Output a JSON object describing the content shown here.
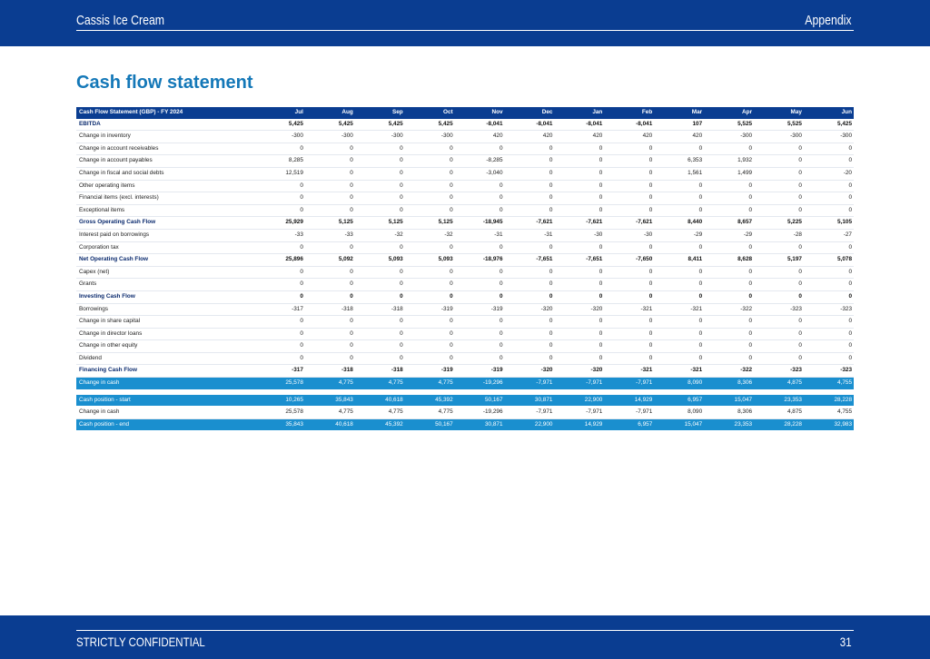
{
  "header": {
    "left": "Cassis Ice Cream",
    "right": "Appendix"
  },
  "footer": {
    "left": "STRICTLY CONFIDENTIAL",
    "page": "31"
  },
  "page_title": "Cash flow statement",
  "table": {
    "corner": "Cash Flow Statement (GBP) - FY 2024",
    "months": [
      "Jul",
      "Aug",
      "Sep",
      "Oct",
      "Nov",
      "Dec",
      "Jan",
      "Feb",
      "Mar",
      "Apr",
      "May",
      "Jun"
    ],
    "rows": [
      {
        "label": "EBITDA",
        "style": "bold",
        "values": [
          "5,425",
          "5,425",
          "5,425",
          "5,425",
          "-8,041",
          "-8,041",
          "-8,041",
          "-8,041",
          "107",
          "5,525",
          "5,525",
          "5,425"
        ]
      },
      {
        "label": "Change in inventory",
        "style": "normal",
        "values": [
          "-300",
          "-300",
          "-300",
          "-300",
          "420",
          "420",
          "420",
          "420",
          "420",
          "-300",
          "-300",
          "-300"
        ]
      },
      {
        "label": "Change in account receivables",
        "style": "normal",
        "values": [
          "0",
          "0",
          "0",
          "0",
          "0",
          "0",
          "0",
          "0",
          "0",
          "0",
          "0",
          "0"
        ]
      },
      {
        "label": "Change in account payables",
        "style": "normal",
        "values": [
          "8,285",
          "0",
          "0",
          "0",
          "-8,285",
          "0",
          "0",
          "0",
          "6,353",
          "1,932",
          "0",
          "0"
        ]
      },
      {
        "label": "Change in fiscal and social debts",
        "style": "normal",
        "values": [
          "12,519",
          "0",
          "0",
          "0",
          "-3,040",
          "0",
          "0",
          "0",
          "1,561",
          "1,499",
          "0",
          "-20"
        ]
      },
      {
        "label": "Other operating items",
        "style": "normal",
        "values": [
          "0",
          "0",
          "0",
          "0",
          "0",
          "0",
          "0",
          "0",
          "0",
          "0",
          "0",
          "0"
        ]
      },
      {
        "label": "Financial items (excl. interests)",
        "style": "normal",
        "values": [
          "0",
          "0",
          "0",
          "0",
          "0",
          "0",
          "0",
          "0",
          "0",
          "0",
          "0",
          "0"
        ]
      },
      {
        "label": "Exceptional items",
        "style": "normal",
        "values": [
          "0",
          "0",
          "0",
          "0",
          "0",
          "0",
          "0",
          "0",
          "0",
          "0",
          "0",
          "0"
        ]
      },
      {
        "label": "Gross Operating Cash Flow",
        "style": "bold",
        "values": [
          "25,929",
          "5,125",
          "5,125",
          "5,125",
          "-18,945",
          "-7,621",
          "-7,621",
          "-7,621",
          "8,440",
          "8,657",
          "5,225",
          "5,105"
        ]
      },
      {
        "label": "Interest paid on borrowings",
        "style": "normal",
        "values": [
          "-33",
          "-33",
          "-32",
          "-32",
          "-31",
          "-31",
          "-30",
          "-30",
          "-29",
          "-29",
          "-28",
          "-27"
        ]
      },
      {
        "label": "Corporation tax",
        "style": "normal",
        "values": [
          "0",
          "0",
          "0",
          "0",
          "0",
          "0",
          "0",
          "0",
          "0",
          "0",
          "0",
          "0"
        ]
      },
      {
        "label": "Net Operating Cash Flow",
        "style": "bold",
        "values": [
          "25,896",
          "5,092",
          "5,093",
          "5,093",
          "-18,976",
          "-7,651",
          "-7,651",
          "-7,650",
          "8,411",
          "8,628",
          "5,197",
          "5,078"
        ]
      },
      {
        "label": "Capex (net)",
        "style": "normal",
        "values": [
          "0",
          "0",
          "0",
          "0",
          "0",
          "0",
          "0",
          "0",
          "0",
          "0",
          "0",
          "0"
        ]
      },
      {
        "label": "Grants",
        "style": "normal",
        "values": [
          "0",
          "0",
          "0",
          "0",
          "0",
          "0",
          "0",
          "0",
          "0",
          "0",
          "0",
          "0"
        ]
      },
      {
        "label": "Investing Cash Flow",
        "style": "bold",
        "values": [
          "0",
          "0",
          "0",
          "0",
          "0",
          "0",
          "0",
          "0",
          "0",
          "0",
          "0",
          "0"
        ]
      },
      {
        "label": "Borrowings",
        "style": "normal",
        "values": [
          "-317",
          "-318",
          "-318",
          "-319",
          "-319",
          "-320",
          "-320",
          "-321",
          "-321",
          "-322",
          "-323",
          "-323"
        ]
      },
      {
        "label": "Change in share capital",
        "style": "normal",
        "values": [
          "0",
          "0",
          "0",
          "0",
          "0",
          "0",
          "0",
          "0",
          "0",
          "0",
          "0",
          "0"
        ]
      },
      {
        "label": "Change in director loans",
        "style": "normal",
        "values": [
          "0",
          "0",
          "0",
          "0",
          "0",
          "0",
          "0",
          "0",
          "0",
          "0",
          "0",
          "0"
        ]
      },
      {
        "label": "Change in other equity",
        "style": "normal",
        "values": [
          "0",
          "0",
          "0",
          "0",
          "0",
          "0",
          "0",
          "0",
          "0",
          "0",
          "0",
          "0"
        ]
      },
      {
        "label": "Dividend",
        "style": "normal",
        "values": [
          "0",
          "0",
          "0",
          "0",
          "0",
          "0",
          "0",
          "0",
          "0",
          "0",
          "0",
          "0"
        ]
      },
      {
        "label": "Financing Cash Flow",
        "style": "bold",
        "values": [
          "-317",
          "-318",
          "-318",
          "-319",
          "-319",
          "-320",
          "-320",
          "-321",
          "-321",
          "-322",
          "-323",
          "-323"
        ]
      },
      {
        "label": "Change in cash",
        "style": "highlight",
        "values": [
          "25,578",
          "4,775",
          "4,775",
          "4,775",
          "-19,296",
          "-7,971",
          "-7,971",
          "-7,971",
          "8,090",
          "8,306",
          "4,875",
          "4,755"
        ]
      },
      {
        "label": "",
        "style": "gap",
        "values": []
      },
      {
        "label": "Cash position - start",
        "style": "highlight",
        "values": [
          "10,265",
          "35,843",
          "40,618",
          "45,392",
          "50,167",
          "30,871",
          "22,900",
          "14,929",
          "6,957",
          "15,047",
          "23,353",
          "28,228"
        ]
      },
      {
        "label": "Change in cash",
        "style": "normal",
        "values": [
          "25,578",
          "4,775",
          "4,775",
          "4,775",
          "-19,296",
          "-7,971",
          "-7,971",
          "-7,971",
          "8,090",
          "8,306",
          "4,875",
          "4,755"
        ]
      },
      {
        "label": "Cash position - end",
        "style": "highlight",
        "values": [
          "35,843",
          "40,618",
          "45,392",
          "50,167",
          "30,871",
          "22,900",
          "14,929",
          "6,957",
          "15,047",
          "23,353",
          "28,228",
          "32,983"
        ]
      }
    ]
  }
}
